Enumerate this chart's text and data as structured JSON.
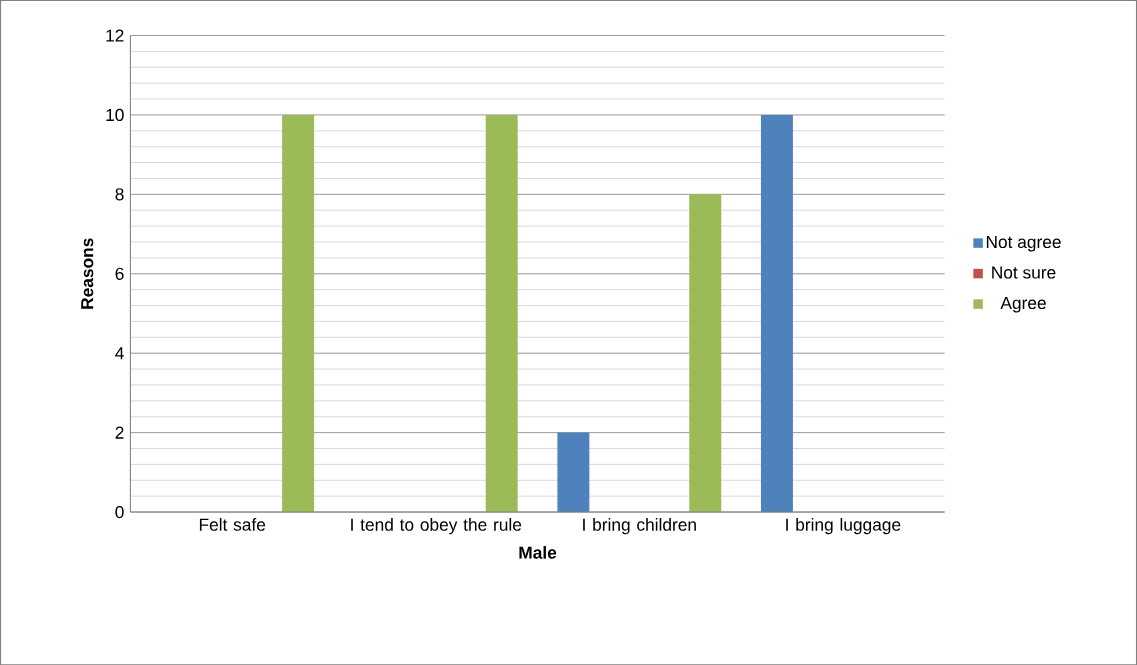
{
  "chart_data": {
    "type": "bar",
    "xlabel": "Male",
    "ylabel": "Reasons",
    "categories": [
      "Felt safe",
      "I tend to obey the rule",
      "I bring children",
      "I bring luggage"
    ],
    "series": [
      {
        "name": "Not agree",
        "color": "#4f81bd",
        "values": [
          0,
          0,
          2,
          10
        ]
      },
      {
        "name": "Not sure",
        "color": "#c0504d",
        "values": [
          0,
          0,
          0,
          0
        ]
      },
      {
        "name": "Agree",
        "color": "#9bbb59",
        "values": [
          10,
          10,
          8,
          0
        ]
      }
    ],
    "ylim": [
      0,
      12
    ],
    "yticks": [
      0,
      2,
      4,
      6,
      8,
      10,
      12
    ],
    "grid": "y",
    "legend": "right"
  }
}
